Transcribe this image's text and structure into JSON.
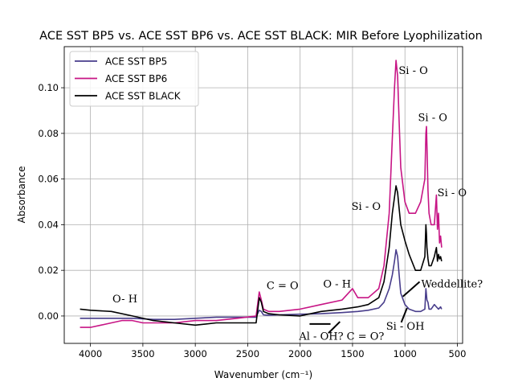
{
  "chart_data": {
    "type": "line",
    "title": "ACE SST BP5 vs. ACE SST BP6 vs. ACE SST BLACK: MIR Before Lyophilization",
    "xlabel": "Wavenumber (cm⁻¹)",
    "ylabel": "Absorbance",
    "xlim": [
      4250,
      450
    ],
    "ylim": [
      -0.012,
      0.118
    ],
    "x_reversed": true,
    "grid": true,
    "legend_position": "upper-left",
    "x_ticks": [
      4000,
      3500,
      3000,
      2500,
      2000,
      1500,
      1000,
      500
    ],
    "x_tick_labels": [
      "4000",
      "3500",
      "3000",
      "2500",
      "2000",
      "1500",
      "1000",
      "500"
    ],
    "y_ticks": [
      0.0,
      0.02,
      0.04,
      0.06,
      0.08,
      0.1
    ],
    "y_tick_labels": [
      "0.00",
      "0.02",
      "0.04",
      "0.06",
      "0.08",
      "0.10"
    ],
    "series": [
      {
        "name": "ACE SST BP5",
        "color": "#483d8b",
        "x": [
          4100,
          4000,
          3800,
          3600,
          3400,
          3200,
          3000,
          2800,
          2600,
          2420,
          2390,
          2370,
          2350,
          2300,
          2200,
          2000,
          1800,
          1600,
          1450,
          1350,
          1250,
          1200,
          1150,
          1120,
          1100,
          1085,
          1070,
          1055,
          1040,
          1000,
          960,
          900,
          850,
          810,
          800,
          790,
          780,
          770,
          750,
          720,
          700,
          680,
          660,
          650
        ],
        "y": [
          -0.001,
          -0.001,
          -0.001,
          -0.001,
          -0.0015,
          -0.0015,
          -0.001,
          -0.0005,
          -0.0005,
          -0.0005,
          0.0025,
          0.002,
          0.0005,
          0.0003,
          0.0005,
          0.0008,
          0.001,
          0.0015,
          0.002,
          0.0025,
          0.0035,
          0.006,
          0.012,
          0.018,
          0.024,
          0.029,
          0.026,
          0.018,
          0.01,
          0.005,
          0.003,
          0.002,
          0.002,
          0.003,
          0.012,
          0.007,
          0.006,
          0.003,
          0.003,
          0.005,
          0.004,
          0.003,
          0.004,
          0.003
        ]
      },
      {
        "name": "ACE SST BP6",
        "color": "#c71585",
        "x": [
          4100,
          4000,
          3900,
          3800,
          3700,
          3600,
          3500,
          3400,
          3200,
          3000,
          2800,
          2600,
          2420,
          2390,
          2370,
          2350,
          2300,
          2200,
          2000,
          1800,
          1600,
          1500,
          1450,
          1350,
          1250,
          1200,
          1150,
          1120,
          1100,
          1085,
          1070,
          1055,
          1040,
          1000,
          960,
          900,
          850,
          810,
          800,
          795,
          790,
          780,
          770,
          750,
          720,
          700,
          690,
          680,
          670,
          660,
          650
        ],
        "y": [
          -0.005,
          -0.005,
          -0.004,
          -0.003,
          -0.002,
          -0.002,
          -0.003,
          -0.003,
          -0.003,
          -0.002,
          -0.002,
          -0.001,
          0.0,
          0.0105,
          0.007,
          0.003,
          0.002,
          0.002,
          0.003,
          0.005,
          0.007,
          0.012,
          0.008,
          0.008,
          0.012,
          0.022,
          0.045,
          0.078,
          0.1,
          0.112,
          0.105,
          0.085,
          0.065,
          0.05,
          0.045,
          0.045,
          0.05,
          0.06,
          0.08,
          0.083,
          0.075,
          0.055,
          0.045,
          0.04,
          0.04,
          0.053,
          0.038,
          0.045,
          0.032,
          0.035,
          0.03
        ]
      },
      {
        "name": "ACE SST BLACK",
        "color": "#000000",
        "x": [
          4100,
          4000,
          3800,
          3600,
          3400,
          3200,
          3000,
          2800,
          2600,
          2420,
          2390,
          2370,
          2350,
          2300,
          2200,
          2000,
          1800,
          1600,
          1450,
          1350,
          1250,
          1200,
          1150,
          1120,
          1100,
          1085,
          1070,
          1055,
          1040,
          1000,
          960,
          900,
          850,
          810,
          800,
          795,
          790,
          780,
          770,
          750,
          720,
          700,
          690,
          680,
          670,
          660,
          650
        ],
        "y": [
          0.003,
          0.0025,
          0.002,
          0.0,
          -0.002,
          -0.003,
          -0.004,
          -0.003,
          -0.003,
          -0.003,
          0.008,
          0.006,
          0.002,
          0.001,
          0.0005,
          0.0,
          0.002,
          0.003,
          0.004,
          0.005,
          0.008,
          0.015,
          0.03,
          0.045,
          0.052,
          0.057,
          0.054,
          0.047,
          0.04,
          0.033,
          0.027,
          0.02,
          0.02,
          0.026,
          0.04,
          0.036,
          0.03,
          0.025,
          0.022,
          0.022,
          0.026,
          0.03,
          0.024,
          0.027,
          0.025,
          0.026,
          0.024
        ]
      }
    ],
    "annotations": [
      {
        "text": "O- H",
        "x": 3790,
        "y": 0.006,
        "ha": "left"
      },
      {
        "text": "C = O",
        "x": 2320,
        "y": 0.0117,
        "ha": "left"
      },
      {
        "text": "O - H",
        "x": 1780,
        "y": 0.0125,
        "ha": "left"
      },
      {
        "text": "Al - OH? C = O?",
        "x": 2010,
        "y": -0.0105,
        "ha": "left"
      },
      {
        "text": "Si - O",
        "x": 1510,
        "y": 0.0465,
        "ha": "left"
      },
      {
        "text": "Si - O",
        "x": 1060,
        "y": 0.106,
        "ha": "left"
      },
      {
        "text": "Si - O",
        "x": 875,
        "y": 0.0855,
        "ha": "left"
      },
      {
        "text": "Si - O",
        "x": 690,
        "y": 0.0525,
        "ha": "left"
      },
      {
        "text": "Si - OH",
        "x": 1180,
        "y": -0.006,
        "ha": "left"
      },
      {
        "text": "Weddellite?",
        "x": 845,
        "y": 0.0125,
        "ha": "left"
      }
    ],
    "annotation_lines": [
      [
        [
          1910,
          -0.0035
        ],
        [
          1710,
          -0.0035
        ]
      ],
      [
        [
          1730,
          -0.0075
        ],
        [
          1620,
          -0.0025
        ]
      ],
      [
        [
          1035,
          -0.0028
        ],
        [
          980,
          0.0035
        ]
      ],
      [
        [
          1020,
          0.0085
        ],
        [
          860,
          0.015
        ]
      ]
    ]
  }
}
